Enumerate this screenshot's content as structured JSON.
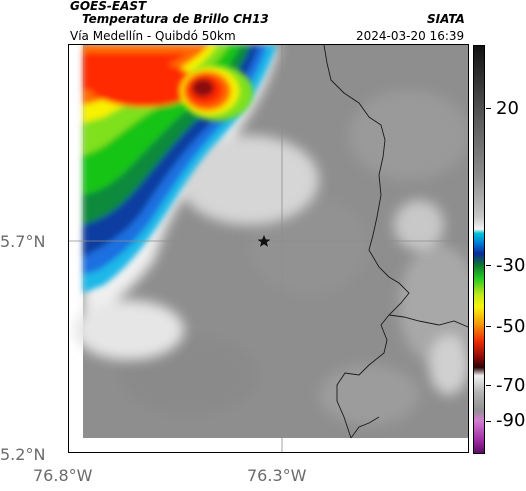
{
  "header": {
    "satellite": "GOES-EAST",
    "product": "Temperatura de Brillo CH13",
    "region": "Vía Medellín - Quibdó 50km",
    "agency": "SIATA",
    "datetime": "2024-03-20 16:39"
  },
  "axes": {
    "x_ticks": [
      "76.8°W",
      "76.3°W"
    ],
    "y_ticks": [
      "5.7°N",
      "5.2°N"
    ],
    "grid": true
  },
  "colorbar": {
    "ticks": [
      "20",
      "-30",
      "-50",
      "-70",
      "-90"
    ],
    "colors": [
      "#111111",
      "#8c8c8c",
      "#f2f2f2",
      "#00c6d6",
      "#0a2a9a",
      "#22c823",
      "#f6f40d",
      "#ee2c06",
      "#2a0404",
      "#b4b4b4",
      "#9d2aa0"
    ]
  },
  "map": {
    "marker": "star-icon",
    "cloud_colors": [
      "#ff2a00",
      "#ff6a00",
      "#f7f200",
      "#7fe01a",
      "#19c418",
      "#0f8a3a",
      "#0b3ea0",
      "#1f6fe0",
      "#1fb8e8",
      "#c4c4c4"
    ],
    "land_gray": "#8e8e8e"
  }
}
